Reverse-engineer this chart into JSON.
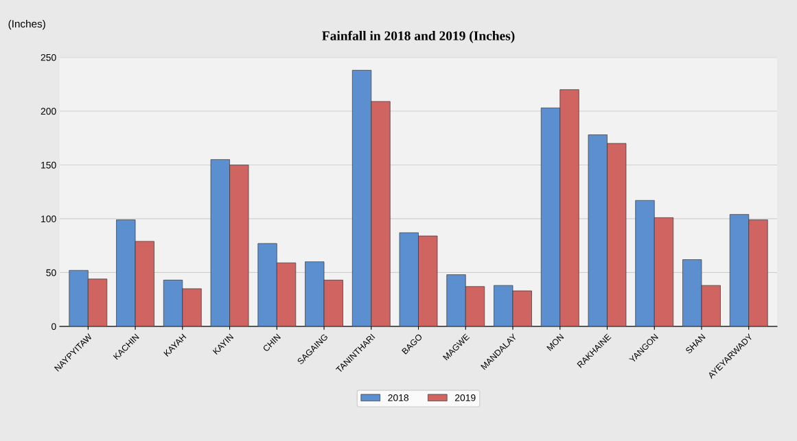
{
  "chart_data": {
    "type": "bar",
    "title": "Fainfall in 2018 and 2019 (Inches)",
    "ylabel": "(Inches)",
    "categories": [
      "NAYPYITAW",
      "KACHIN",
      "KAYAH",
      "KAYIN",
      "CHIN",
      "SAGAING",
      "TANINTHARI",
      "BAGO",
      "MAGWE",
      "MANDALAY",
      "MON",
      "RAKHAINE",
      "YANGON",
      "SHAN",
      "AYEYARWADY"
    ],
    "series": [
      {
        "name": "2018",
        "color": "#5b8fd0",
        "values": [
          52,
          99,
          43,
          155,
          77,
          60,
          238,
          87,
          48,
          38,
          203,
          178,
          117,
          62,
          104
        ]
      },
      {
        "name": "2019",
        "color": "#cf6461",
        "values": [
          44,
          79,
          35,
          150,
          59,
          43,
          209,
          84,
          37,
          33,
          220,
          170,
          101,
          38,
          99
        ]
      }
    ],
    "ylim": [
      0,
      250
    ],
    "yticks": [
      0,
      50,
      100,
      150,
      200,
      250
    ],
    "grid": "y",
    "legend": "bottom"
  }
}
